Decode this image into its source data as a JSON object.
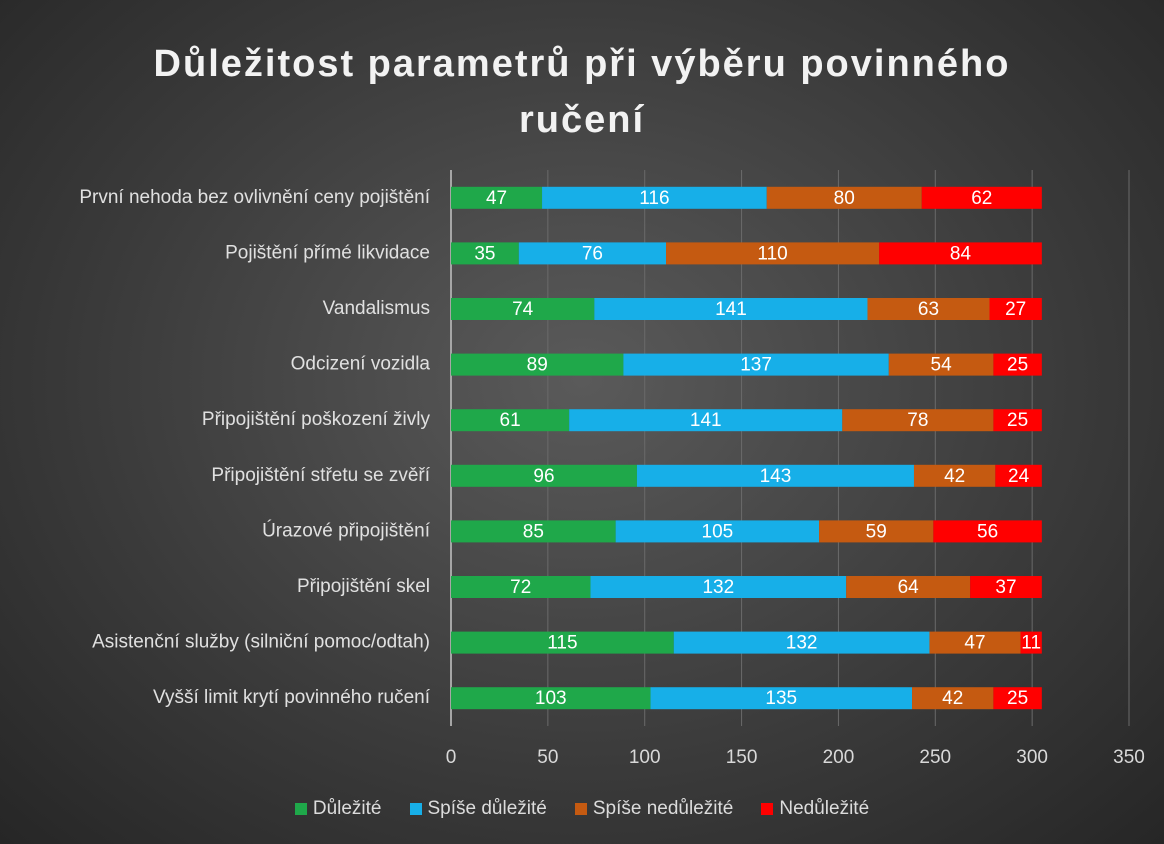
{
  "chart_data": {
    "type": "stacked_bar_horizontal",
    "title": "Důležitost parametrů při výběru povinného ručení",
    "categories": [
      "První nehoda bez ovlivnění ceny pojištění",
      "Pojištění přímé likvidace",
      "Vandalismus",
      "Odcizení vozidla",
      "Připojištění poškození živly",
      "Připojištění střetu se zvěří",
      "Úrazové připojištění",
      "Připojištění skel",
      "Asistenční služby (silniční pomoc/odtah)",
      "Vyšší limit krytí povinného ručení"
    ],
    "series": [
      {
        "name": "Důležité",
        "color": "#1fa84a",
        "values": [
          47,
          35,
          74,
          89,
          61,
          96,
          85,
          72,
          115,
          103
        ]
      },
      {
        "name": "Spíše důležité",
        "color": "#17afe8",
        "values": [
          116,
          76,
          141,
          137,
          141,
          143,
          105,
          132,
          132,
          135
        ]
      },
      {
        "name": "Spíše nedůležité",
        "color": "#c55a11",
        "values": [
          80,
          110,
          63,
          54,
          78,
          42,
          59,
          64,
          47,
          42
        ]
      },
      {
        "name": "Nedůležité",
        "color": "#ff0000",
        "values": [
          62,
          84,
          27,
          25,
          25,
          24,
          56,
          37,
          11,
          25
        ]
      }
    ],
    "xlim": [
      0,
      350
    ],
    "xticks": [
      0,
      50,
      100,
      150,
      200,
      250,
      300,
      350
    ],
    "grid": true,
    "legend": "bottom"
  }
}
